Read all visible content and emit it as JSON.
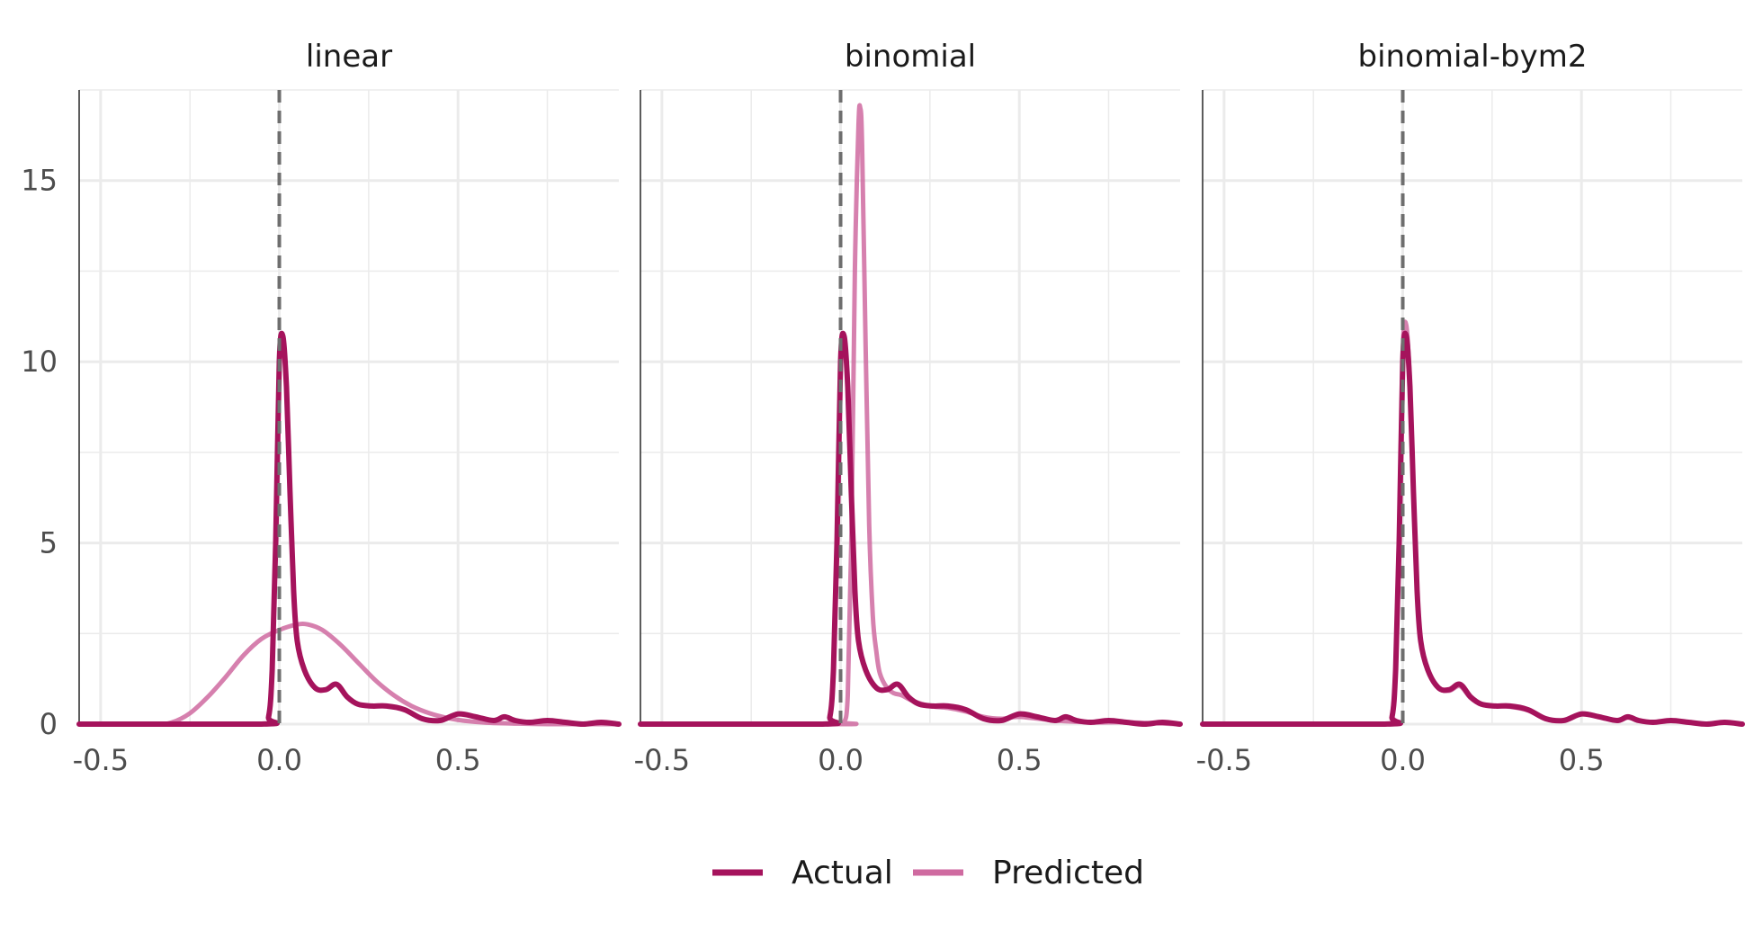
{
  "chart_data": {
    "type": "line",
    "colors": {
      "actual": "#A5135C",
      "predicted": "#CF6AA0",
      "grid": "#EBEBEB",
      "zero_line": "#6E6E6E"
    },
    "grid": true,
    "legend": {
      "position": "bottom",
      "items": [
        {
          "label": "Actual",
          "color": "#A5135C"
        },
        {
          "label": "Predicted",
          "color": "#CF6AA0"
        }
      ]
    },
    "ylim": [
      0,
      17.5
    ],
    "y_ticks": [
      0,
      5,
      10,
      15
    ],
    "y_tick_labels": [
      "0",
      "5",
      "10",
      "15"
    ],
    "xlim": [
      -0.56,
      0.95
    ],
    "x_ticks": [
      -0.5,
      0.0,
      0.5
    ],
    "x_tick_labels": [
      "-0.5",
      "0.0",
      "0.5"
    ],
    "panels": [
      {
        "title": "linear",
        "series": [
          {
            "name": "Actual",
            "x": [
              -0.56,
              -0.05,
              -0.03,
              -0.02,
              -0.01,
              0.0,
              0.01,
              0.02,
              0.03,
              0.04,
              0.05,
              0.07,
              0.1,
              0.13,
              0.16,
              0.19,
              0.22,
              0.26,
              0.3,
              0.35,
              0.4,
              0.45,
              0.5,
              0.55,
              0.6,
              0.63,
              0.66,
              0.7,
              0.75,
              0.8,
              0.85,
              0.9,
              0.95
            ],
            "y": [
              0,
              0,
              0.2,
              1.5,
              5.0,
              10.0,
              10.7,
              9.3,
              6.4,
              3.7,
              2.3,
              1.5,
              1.0,
              0.95,
              1.1,
              0.75,
              0.55,
              0.5,
              0.5,
              0.4,
              0.15,
              0.1,
              0.28,
              0.2,
              0.1,
              0.2,
              0.1,
              0.05,
              0.1,
              0.05,
              0.0,
              0.05,
              0.0
            ]
          },
          {
            "name": "Predicted",
            "x": [
              -0.56,
              -0.35,
              -0.3,
              -0.25,
              -0.2,
              -0.15,
              -0.1,
              -0.05,
              0.0,
              0.05,
              0.08,
              0.12,
              0.17,
              0.22,
              0.27,
              0.32,
              0.37,
              0.42,
              0.47,
              0.52,
              0.58,
              0.65,
              0.75,
              0.95
            ],
            "y": [
              0,
              0,
              0.05,
              0.3,
              0.75,
              1.3,
              1.9,
              2.35,
              2.6,
              2.75,
              2.75,
              2.6,
              2.2,
              1.7,
              1.2,
              0.8,
              0.5,
              0.3,
              0.17,
              0.09,
              0.04,
              0.02,
              0.0,
              0.0
            ]
          }
        ]
      },
      {
        "title": "binomial",
        "series": [
          {
            "name": "Actual",
            "x": [
              -0.56,
              -0.05,
              -0.03,
              -0.02,
              -0.01,
              0.0,
              0.01,
              0.02,
              0.03,
              0.04,
              0.05,
              0.07,
              0.1,
              0.13,
              0.16,
              0.19,
              0.22,
              0.26,
              0.3,
              0.35,
              0.4,
              0.45,
              0.5,
              0.55,
              0.6,
              0.63,
              0.66,
              0.7,
              0.75,
              0.8,
              0.85,
              0.9,
              0.95
            ],
            "y": [
              0,
              0,
              0.2,
              1.5,
              5.0,
              10.0,
              10.7,
              9.3,
              6.4,
              3.7,
              2.3,
              1.5,
              1.0,
              0.95,
              1.1,
              0.75,
              0.55,
              0.5,
              0.5,
              0.4,
              0.15,
              0.1,
              0.28,
              0.2,
              0.1,
              0.2,
              0.1,
              0.05,
              0.1,
              0.05,
              0.0,
              0.05,
              0.0
            ]
          },
          {
            "name": "Predicted",
            "x": [
              -0.56,
              0.0,
              0.01,
              0.02,
              0.03,
              0.04,
              0.05,
              0.055,
              0.06,
              0.07,
              0.08,
              0.09,
              0.1,
              0.11,
              0.13,
              0.15,
              0.17,
              0.2,
              0.25,
              0.3,
              0.35,
              0.4,
              0.45,
              0.5,
              0.6,
              0.7,
              0.8,
              0.95
            ],
            "y": [
              0,
              0,
              0.05,
              0.8,
              5.0,
              12.5,
              16.5,
              17.0,
              16.0,
              10.5,
              5.5,
              3.0,
              2.0,
              1.4,
              1.0,
              0.85,
              0.8,
              0.65,
              0.5,
              0.45,
              0.35,
              0.2,
              0.15,
              0.2,
              0.1,
              0.05,
              0.05,
              0.0
            ]
          }
        ]
      },
      {
        "title": "binomial-bym2",
        "series": [
          {
            "name": "Actual",
            "x": [
              -0.56,
              -0.05,
              -0.03,
              -0.02,
              -0.01,
              0.0,
              0.01,
              0.02,
              0.03,
              0.04,
              0.05,
              0.07,
              0.1,
              0.13,
              0.16,
              0.19,
              0.22,
              0.26,
              0.3,
              0.35,
              0.4,
              0.45,
              0.5,
              0.55,
              0.6,
              0.63,
              0.66,
              0.7,
              0.75,
              0.8,
              0.85,
              0.9,
              0.95
            ],
            "y": [
              0,
              0,
              0.2,
              1.5,
              5.0,
              10.0,
              10.7,
              9.3,
              6.4,
              3.7,
              2.3,
              1.5,
              1.0,
              0.95,
              1.1,
              0.75,
              0.55,
              0.5,
              0.5,
              0.4,
              0.15,
              0.1,
              0.28,
              0.2,
              0.1,
              0.2,
              0.1,
              0.05,
              0.1,
              0.05,
              0.0,
              0.05,
              0.0
            ]
          },
          {
            "name": "Predicted",
            "x": [
              -0.56,
              -0.05,
              -0.03,
              -0.02,
              -0.01,
              0.0,
              0.01,
              0.02,
              0.03,
              0.04,
              0.05,
              0.07,
              0.1,
              0.13,
              0.16,
              0.19,
              0.22,
              0.26,
              0.3,
              0.35,
              0.4,
              0.45,
              0.5,
              0.55,
              0.6,
              0.63,
              0.66,
              0.7,
              0.75,
              0.8,
              0.85,
              0.9,
              0.95
            ],
            "y": [
              0,
              0,
              0.25,
              1.6,
              5.2,
              10.3,
              11.0,
              9.4,
              6.4,
              3.7,
              2.3,
              1.5,
              1.0,
              0.92,
              1.05,
              0.72,
              0.55,
              0.5,
              0.48,
              0.38,
              0.15,
              0.1,
              0.27,
              0.2,
              0.1,
              0.18,
              0.1,
              0.05,
              0.1,
              0.05,
              0.0,
              0.05,
              0.0
            ]
          }
        ]
      }
    ]
  }
}
